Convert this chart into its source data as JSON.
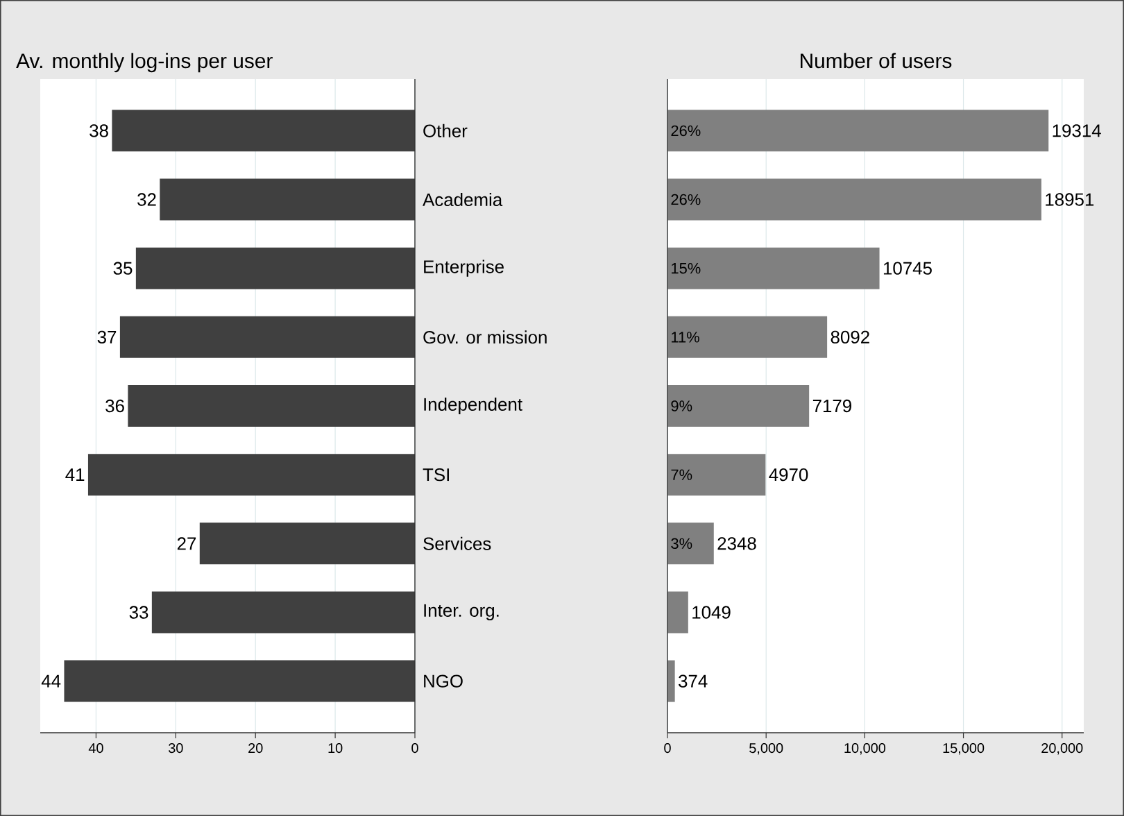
{
  "chart_data": [
    {
      "type": "bar",
      "orientation": "horizontal",
      "title": "Av. monthly log-ins per user",
      "categories": [
        "Other",
        "Academia",
        "Enterprise",
        "Gov. or mission",
        "Independent",
        "TSI",
        "Services",
        "Inter. org.",
        "NGO"
      ],
      "values": [
        38,
        32,
        35,
        37,
        36,
        41,
        27,
        33,
        44
      ],
      "color": "#404040",
      "xlim": [
        47,
        0
      ],
      "xticks": [
        40,
        30,
        20,
        10,
        0
      ],
      "grid": "x",
      "data_labels": true
    },
    {
      "type": "bar",
      "orientation": "horizontal",
      "title": "Number of users",
      "categories": [
        null,
        null,
        null,
        null,
        null,
        null,
        null,
        null,
        null
      ],
      "values": [
        19314,
        18951,
        10745,
        8092,
        7179,
        4970,
        2348,
        1049,
        374
      ],
      "color": "#808080",
      "xlim": [
        0,
        21100
      ],
      "xticks": [
        0,
        {
          "value": 5000,
          "label": "5,000"
        },
        {
          "value": 10000,
          "label": "10,000"
        },
        {
          "value": 15000,
          "label": "15,000"
        },
        {
          "value": 20000,
          "label": "20,000"
        }
      ],
      "grid": "x",
      "data_labels": true,
      "tick_labels": "x",
      "annotations": [
        "26%",
        "26%",
        "15%",
        "11%",
        "9%",
        "7%",
        "3%"
      ]
    }
  ]
}
